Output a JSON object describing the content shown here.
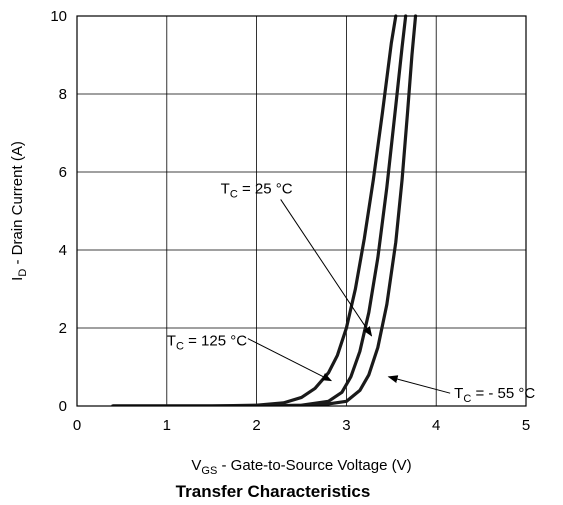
{
  "chart_data": {
    "type": "line",
    "title": "Transfer Characteristics",
    "xlabel": {
      "pre": "V",
      "sub": "GS",
      "post": " - Gate-to-Source Voltage (V)"
    },
    "ylabel": {
      "pre": "I",
      "sub": "D",
      "post": " - Drain Current (A)"
    },
    "xlim": [
      0,
      5
    ],
    "ylim": [
      0,
      10
    ],
    "xticks": [
      "0",
      "1",
      "2",
      "3",
      "4",
      "5"
    ],
    "yticks": [
      "0",
      "2",
      "4",
      "6",
      "8",
      "10"
    ],
    "grid": true,
    "series": [
      {
        "name": {
          "pre": "T",
          "sub": "C",
          "post": " = 125 °C"
        },
        "x": [
          0.4,
          1.5,
          2.0,
          2.3,
          2.5,
          2.65,
          2.8,
          2.9,
          3.0,
          3.1,
          3.2,
          3.3,
          3.4,
          3.5,
          3.55
        ],
        "y": [
          0,
          0,
          0.02,
          0.08,
          0.22,
          0.45,
          0.85,
          1.3,
          2.0,
          3.0,
          4.3,
          5.8,
          7.5,
          9.3,
          10
        ]
      },
      {
        "name": {
          "pre": "T",
          "sub": "C",
          "post": " = 25 °C"
        },
        "x": [
          0.4,
          2.0,
          2.5,
          2.8,
          2.95,
          3.05,
          3.15,
          3.25,
          3.35,
          3.45,
          3.55,
          3.62,
          3.66
        ],
        "y": [
          0,
          0,
          0.02,
          0.12,
          0.35,
          0.75,
          1.4,
          2.4,
          3.8,
          5.6,
          7.7,
          9.2,
          10
        ]
      },
      {
        "name": {
          "pre": "T",
          "sub": "C",
          "post": " = - 55 °C"
        },
        "x": [
          0.4,
          2.0,
          2.7,
          3.0,
          3.15,
          3.25,
          3.35,
          3.45,
          3.55,
          3.62,
          3.68,
          3.73,
          3.77
        ],
        "y": [
          0,
          0,
          0.02,
          0.12,
          0.4,
          0.8,
          1.5,
          2.6,
          4.2,
          5.8,
          7.5,
          9.0,
          10
        ]
      }
    ],
    "annotations": [
      {
        "series": 0,
        "text_at": [
          1.0,
          1.55
        ],
        "arrow_to": [
          2.83,
          0.65
        ]
      },
      {
        "series": 1,
        "text_at": [
          1.6,
          5.45
        ],
        "arrow_to": [
          3.28,
          1.8
        ]
      },
      {
        "series": 2,
        "text_at": [
          4.2,
          0.2
        ],
        "arrow_to": [
          3.47,
          0.75
        ]
      }
    ]
  }
}
